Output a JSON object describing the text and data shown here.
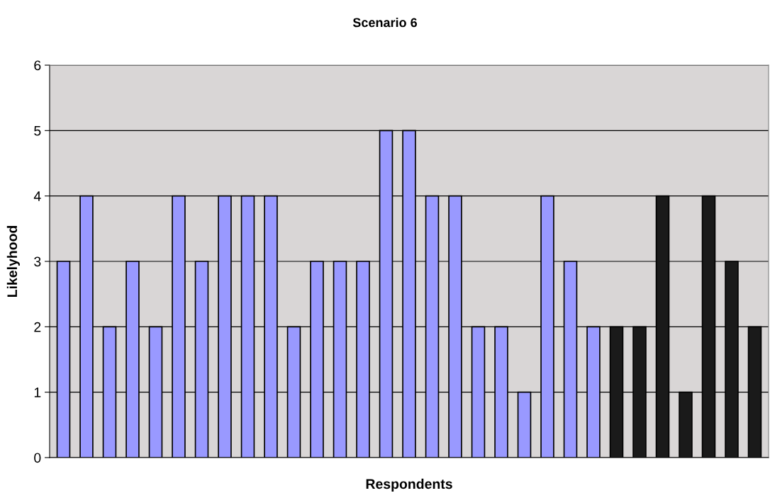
{
  "chart_data": {
    "type": "bar",
    "title": "Scenario 6",
    "xlabel": "Respondents",
    "ylabel": "Likelyhood",
    "categories": [
      null,
      null,
      null,
      null,
      null,
      null,
      null,
      null,
      null,
      null,
      null,
      null,
      null,
      null,
      null,
      null,
      null,
      null,
      null,
      null,
      null,
      null,
      null,
      null,
      null,
      null,
      null,
      null,
      null,
      null,
      null
    ],
    "values": [
      3,
      4,
      2,
      3,
      2,
      4,
      3,
      4,
      4,
      4,
      2,
      3,
      3,
      3,
      5,
      5,
      4,
      4,
      2,
      2,
      1,
      4,
      3,
      2,
      2,
      2,
      4,
      1,
      4,
      3,
      2
    ],
    "colors": [
      "#9999ff",
      "#9999ff",
      "#9999ff",
      "#9999ff",
      "#9999ff",
      "#9999ff",
      "#9999ff",
      "#9999ff",
      "#9999ff",
      "#9999ff",
      "#9999ff",
      "#9999ff",
      "#9999ff",
      "#9999ff",
      "#9999ff",
      "#9999ff",
      "#9999ff",
      "#9999ff",
      "#9999ff",
      "#9999ff",
      "#9999ff",
      "#9999ff",
      "#9999ff",
      "#9999ff",
      "#1a1a1a",
      "#1a1a1a",
      "#1a1a1a",
      "#1a1a1a",
      "#1a1a1a",
      "#1a1a1a",
      "#1a1a1a"
    ],
    "ylim": [
      0,
      6
    ],
    "yticks": [
      0,
      1,
      2,
      3,
      4,
      5,
      6
    ],
    "grid": "y",
    "legend": false
  }
}
